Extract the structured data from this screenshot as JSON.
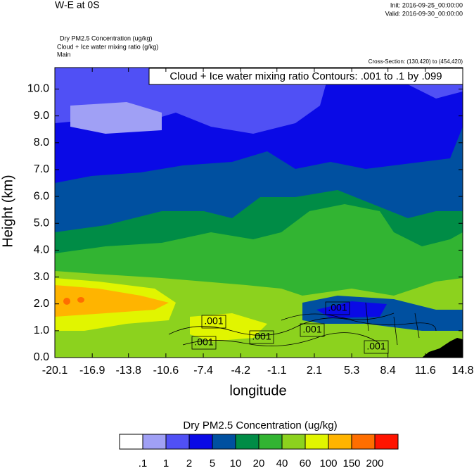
{
  "chart_data": {
    "type": "contour",
    "title": "W-E at 0S",
    "init": "Init: 2016-09-25_00:00:00",
    "valid": "Valid: 2016-09-30_00:00:00",
    "field_lines": [
      "Dry PM2.5 Concentration   (ug/kg)",
      "Cloud + Ice water mixing ratio   (g/kg)",
      "Main"
    ],
    "cross_section": "Cross-Section: (130,420) to (454,420)",
    "contour_note": "Cloud + Ice water mixing ratio Contours: .001 to .1 by .099",
    "contour_labels": [
      ".001",
      ".001",
      ".001",
      ".001",
      ".001",
      ".001"
    ],
    "xlabel": "longitude",
    "ylabel": "Height (km)",
    "xlim": [
      -20.1,
      14.8
    ],
    "xticks": [
      -20.1,
      -16.9,
      -13.8,
      -10.6,
      -7.4,
      -4.2,
      -1.1,
      2.1,
      5.3,
      8.4,
      11.6,
      14.8
    ],
    "ylim": [
      0,
      10.8
    ],
    "yticks": [
      {
        "value": 0,
        "label": "0.0"
      },
      {
        "value": 1,
        "label": "1.0"
      },
      {
        "value": 2,
        "label": "2.0"
      },
      {
        "value": 3,
        "label": "3.0"
      },
      {
        "value": 4,
        "label": "4.0"
      },
      {
        "value": 5,
        "label": "5.0"
      },
      {
        "value": 6,
        "label": "6.0"
      },
      {
        "value": 7,
        "label": "7.0"
      },
      {
        "value": 8,
        "label": "8.0"
      },
      {
        "value": 9,
        "label": "9.0"
      },
      {
        "value": 10,
        "label": "10.0"
      }
    ],
    "colorbar": {
      "title": "Dry PM2.5 Concentration  (ug/kg)",
      "levels": [
        {
          "value": 0.1,
          "label": ".1"
        },
        1,
        2,
        5,
        10,
        20,
        40,
        60,
        100,
        150,
        200
      ],
      "colors": [
        "#ffffff",
        "#a0a0f5",
        "#5050f5",
        "#0a0ae6",
        "#0050a0",
        "#008c46",
        "#32b432",
        "#8cd21e",
        "#e1f500",
        "#ffb400",
        "#ff6e00",
        "#ff1400"
      ]
    }
  }
}
